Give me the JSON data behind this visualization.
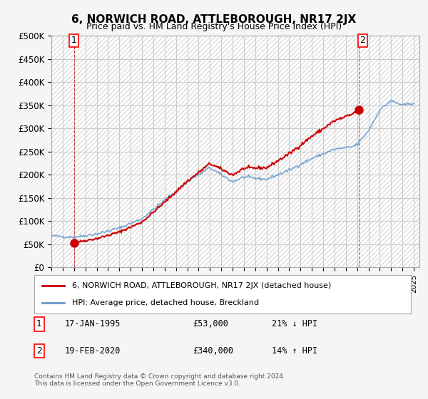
{
  "title": "6, NORWICH ROAD, ATTLEBOROUGH, NR17 2JX",
  "subtitle": "Price paid vs. HM Land Registry's House Price Index (HPI)",
  "ylabel": "",
  "ylim": [
    0,
    500000
  ],
  "yticks": [
    0,
    50000,
    100000,
    150000,
    200000,
    250000,
    300000,
    350000,
    400000,
    450000,
    500000
  ],
  "ytick_labels": [
    "£0",
    "£50K",
    "£100K",
    "£150K",
    "£200K",
    "£250K",
    "£300K",
    "£350K",
    "£400K",
    "£450K",
    "£500K"
  ],
  "xlim_start": 1993.0,
  "xlim_end": 2025.5,
  "hatch_color": "#cccccc",
  "grid_color": "#cccccc",
  "bg_color": "#f5f5f5",
  "plot_bg": "#ffffff",
  "sale1_x": 1995.04,
  "sale1_y": 53000,
  "sale1_label": "1",
  "sale2_x": 2020.12,
  "sale2_y": 340000,
  "sale2_label": "2",
  "vline1_x": 1995.04,
  "vline2_x": 2020.12,
  "legend_line1": "6, NORWICH ROAD, ATTLEBOROUGH, NR17 2JX (detached house)",
  "legend_line2": "HPI: Average price, detached house, Breckland",
  "annotation1": "1    17-JAN-1995          £53,000          21% ↓ HPI",
  "annotation2": "2    19-FEB-2020          £340,000        14% ↑ HPI",
  "footer": "Contains HM Land Registry data © Crown copyright and database right 2024.\nThis data is licensed under the Open Government Licence v3.0.",
  "sale_color": "#cc0000",
  "hpi_color": "#6699cc",
  "vline_color": "#cc0000"
}
